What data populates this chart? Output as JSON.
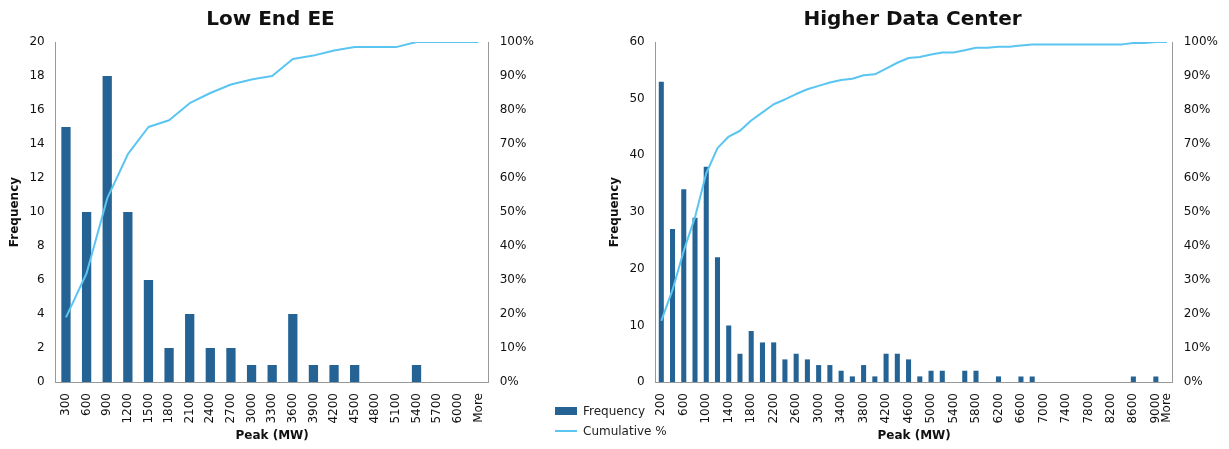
{
  "chart_data": [
    {
      "type": "bar",
      "title": "Low End EE",
      "xlabel": "Peak (MW)",
      "ylabel": "Frequency",
      "legend": "bottom right",
      "grid": false,
      "categories": [
        "300",
        "600",
        "900",
        "1200",
        "1500",
        "1800",
        "2100",
        "2400",
        "2700",
        "3000",
        "3300",
        "3600",
        "3900",
        "4200",
        "4500",
        "4800",
        "5100",
        "5400",
        "5700",
        "6000",
        "More"
      ],
      "series": [
        {
          "name": "Frequency",
          "color": "#256394",
          "values": [
            15,
            10,
            18,
            10,
            6,
            2,
            4,
            2,
            2,
            1,
            1,
            4,
            1,
            1,
            1,
            0,
            0,
            1,
            0,
            0,
            0
          ]
        },
        {
          "name": "Cumulative %",
          "type": "line",
          "axis": "y2",
          "marker": "none",
          "color": "#5bc5f2",
          "values": [
            19,
            32,
            54,
            67,
            75,
            77,
            82,
            85,
            87.5,
            89,
            90,
            95,
            96,
            97.5,
            98.5,
            98.5,
            98.5,
            100,
            100,
            100,
            100
          ]
        }
      ],
      "ylim": [
        0,
        20
      ],
      "yticks": [
        0,
        2,
        4,
        6,
        8,
        10,
        12,
        14,
        16,
        18,
        20
      ],
      "y2lim": [
        0,
        100
      ],
      "y2ticks": [
        {
          "value": 0,
          "label": "0%"
        },
        {
          "value": 10,
          "label": "10%"
        },
        {
          "value": 20,
          "label": "20%"
        },
        {
          "value": 30,
          "label": "30%"
        },
        {
          "value": 40,
          "label": "40%"
        },
        {
          "value": 50,
          "label": "50%"
        },
        {
          "value": 60,
          "label": "60%"
        },
        {
          "value": 70,
          "label": "70%"
        },
        {
          "value": 80,
          "label": "80%"
        },
        {
          "value": 90,
          "label": "90%"
        },
        {
          "value": 100,
          "label": "100%"
        }
      ]
    },
    {
      "type": "bar",
      "title": "Higher Data Center",
      "xlabel": "Peak (MW)",
      "ylabel": "Frequency",
      "legend": false,
      "grid": false,
      "categories": [
        "200",
        null,
        "600",
        null,
        "1000",
        null,
        "1400",
        null,
        "1800",
        null,
        "2200",
        null,
        "2600",
        null,
        "3000",
        null,
        "3400",
        null,
        "3800",
        null,
        "4200",
        null,
        "4600",
        null,
        "5000",
        null,
        "5400",
        null,
        "5800",
        null,
        "6200",
        null,
        "6600",
        null,
        "7000",
        null,
        "7400",
        null,
        "7800",
        null,
        "8200",
        null,
        "8600",
        null,
        "9000",
        "More"
      ],
      "series": [
        {
          "color": "#256394",
          "values": [
            53,
            27,
            34,
            29,
            38,
            22,
            10,
            5,
            9,
            7,
            7,
            4,
            5,
            4,
            3,
            3,
            2,
            1,
            3,
            1,
            5,
            5,
            4,
            1,
            2,
            2,
            0,
            2,
            2,
            0,
            1,
            0,
            1,
            1,
            0,
            0,
            0,
            0,
            0,
            0,
            0,
            0,
            1,
            0,
            1,
            0
          ]
        },
        {
          "type": "line",
          "axis": "y2",
          "marker": "none",
          "color": "#5bc5f2",
          "values": [
            18,
            27.1,
            38.6,
            48.5,
            61.4,
            68.8,
            72.2,
            73.9,
            76.9,
            79.3,
            81.7,
            83.1,
            84.7,
            86.1,
            87.1,
            88.1,
            88.8,
            89.2,
            90.2,
            90.5,
            92.2,
            93.9,
            95.3,
            95.6,
            96.3,
            96.9,
            96.9,
            97.6,
            98.3,
            98.3,
            98.6,
            98.6,
            99,
            99.3,
            99.3,
            99.3,
            99.3,
            99.3,
            99.3,
            99.3,
            99.3,
            99.3,
            99.7,
            99.7,
            100,
            100
          ]
        }
      ],
      "ylim": [
        0,
        60
      ],
      "yticks": [
        0,
        10,
        20,
        30,
        40,
        50,
        60
      ],
      "y2lim": [
        0,
        100
      ],
      "y2ticks": [
        {
          "value": 0,
          "label": "0%"
        },
        {
          "value": 10,
          "label": "10%"
        },
        {
          "value": 20,
          "label": "20%"
        },
        {
          "value": 30,
          "label": "30%"
        },
        {
          "value": 40,
          "label": "40%"
        },
        {
          "value": 50,
          "label": "50%"
        },
        {
          "value": 60,
          "label": "60%"
        },
        {
          "value": 70,
          "label": "70%"
        },
        {
          "value": 80,
          "label": "80%"
        },
        {
          "value": 90,
          "label": "90%"
        },
        {
          "value": 100,
          "label": "100%"
        }
      ]
    }
  ]
}
